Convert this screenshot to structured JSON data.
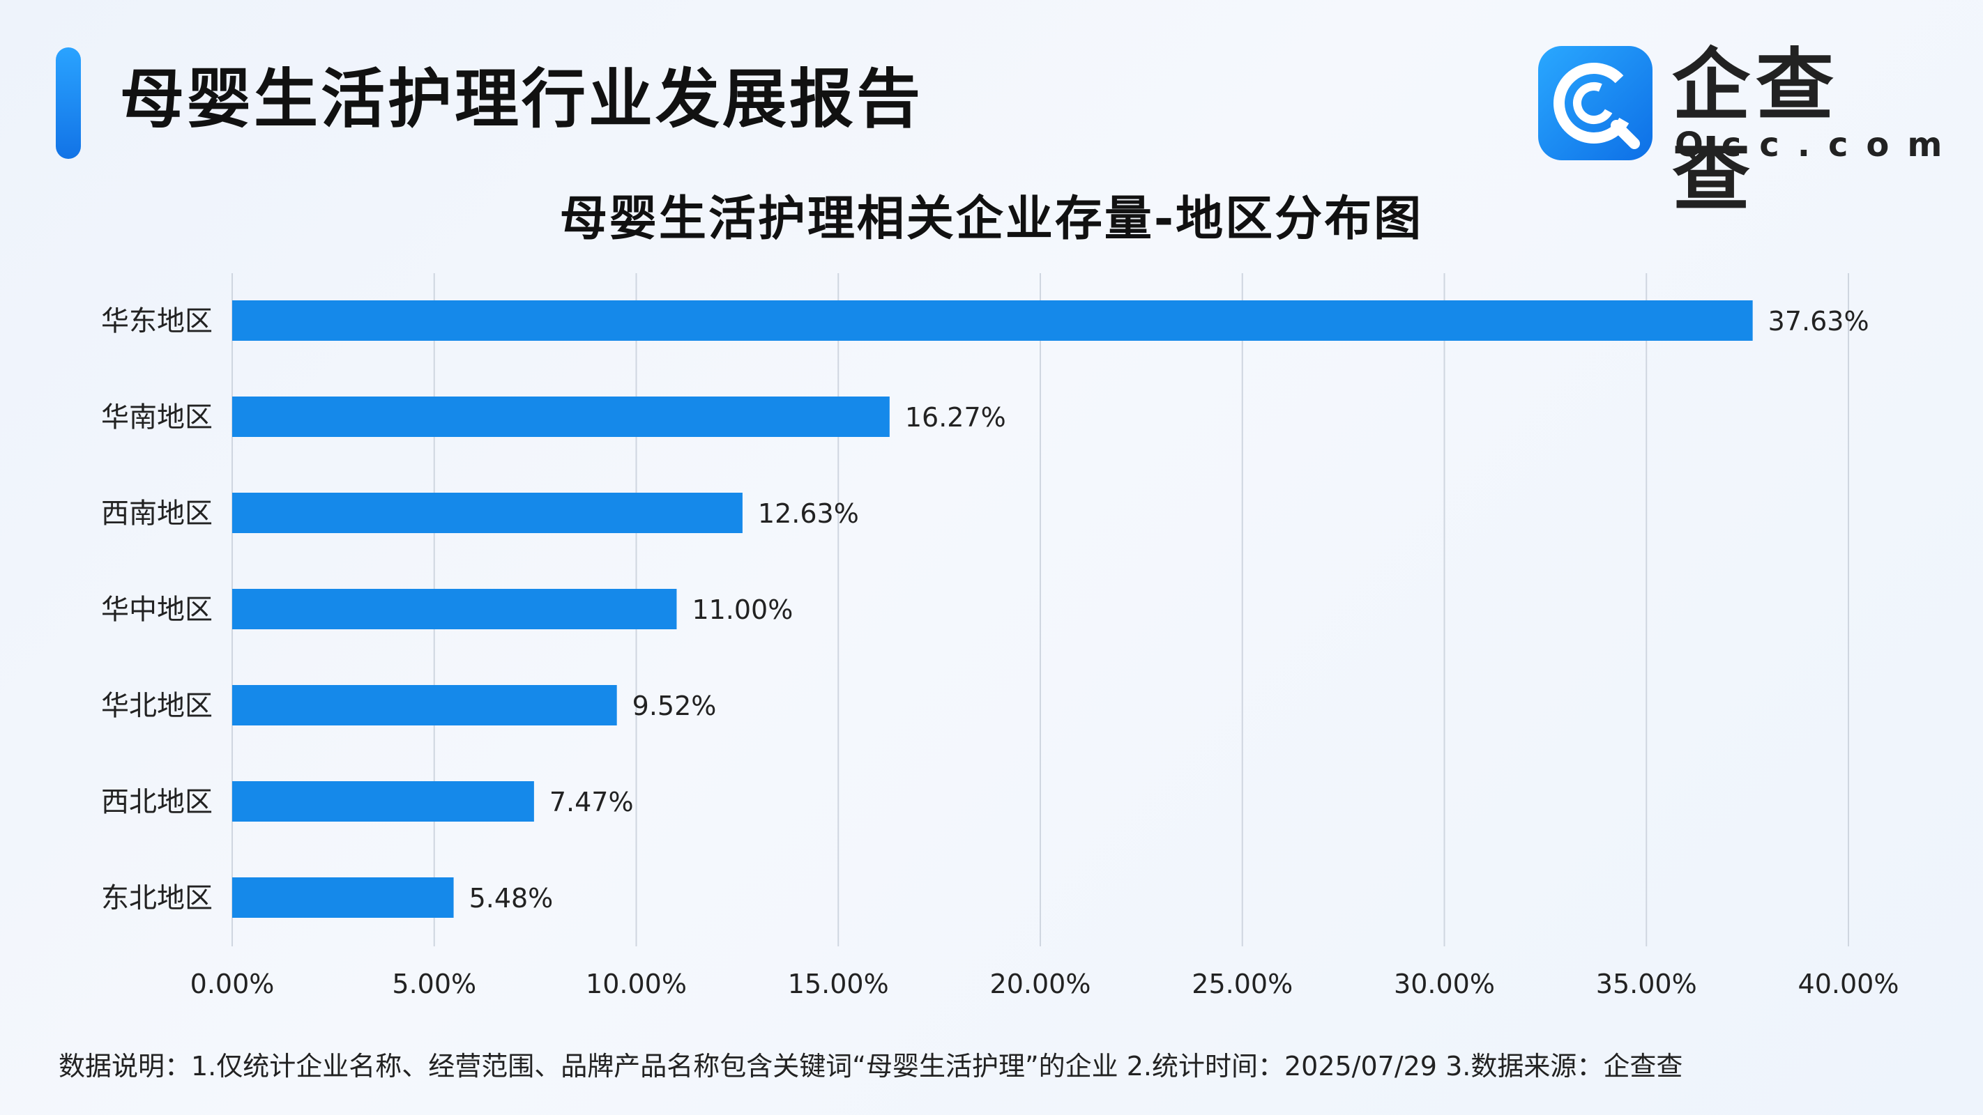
{
  "header": {
    "title": "母婴生活护理行业发展报告"
  },
  "logo": {
    "name": "企查查",
    "sub": "Qcc.com",
    "mark_icon": "qcc-logo-icon"
  },
  "colors": {
    "bar": "#1589ea",
    "grid": "#cfd6e0",
    "accent": "#1a86f0"
  },
  "chart_data": {
    "type": "bar",
    "orientation": "horizontal",
    "title": "母婴生活护理相关企业存量-地区分布图",
    "categories": [
      "华东地区",
      "华南地区",
      "西南地区",
      "华中地区",
      "华北地区",
      "西北地区",
      "东北地区"
    ],
    "values": [
      37.63,
      16.27,
      12.63,
      11.0,
      9.52,
      7.47,
      5.48
    ],
    "value_labels": [
      "37.63%",
      "16.27%",
      "12.63%",
      "11.00%",
      "9.52%",
      "7.47%",
      "5.48%"
    ],
    "xlim": [
      0,
      40
    ],
    "xticks": [
      0,
      5,
      10,
      15,
      20,
      25,
      30,
      35,
      40
    ],
    "xtick_labels": [
      "0.00%",
      "5.00%",
      "10.00%",
      "15.00%",
      "20.00%",
      "25.00%",
      "30.00%",
      "35.00%",
      "40.00%"
    ],
    "grid": "vertical",
    "legend": "none"
  },
  "footnote": {
    "text": "数据说明：1.仅统计企业名称、经营范围、品牌产品名称包含关键词“母婴生活护理”的企业   2.统计时间：2025/07/29   3.数据来源：企查查"
  }
}
